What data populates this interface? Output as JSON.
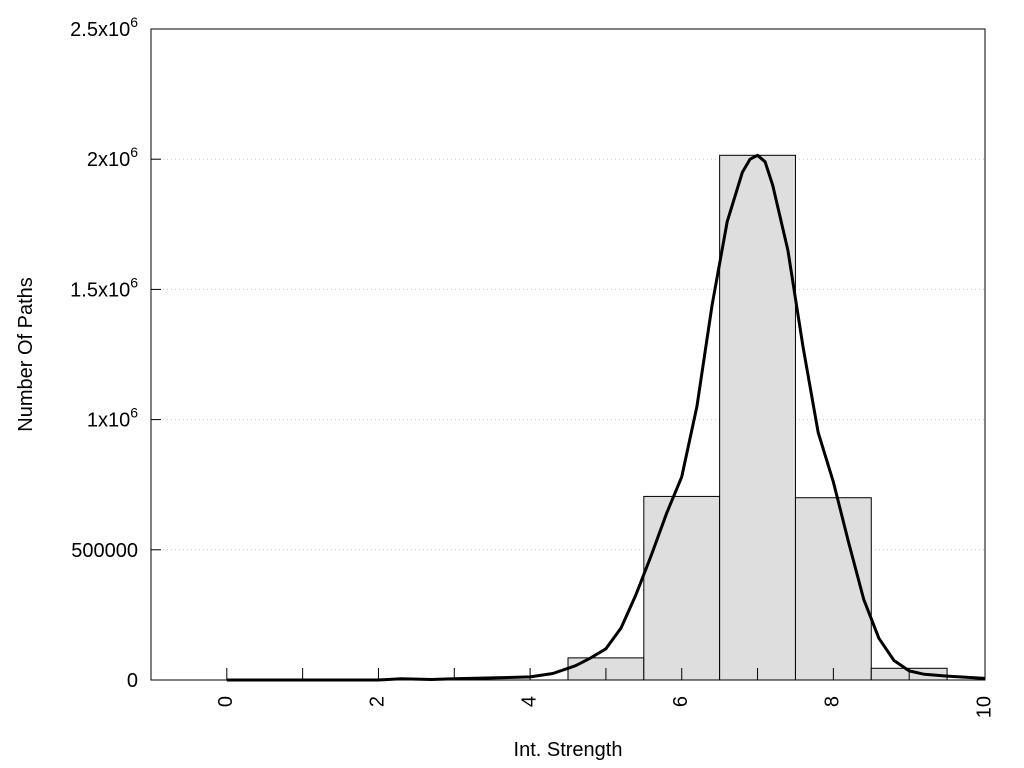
{
  "chart_data": {
    "type": "bar",
    "title": "",
    "xlabel": "Int. Strength",
    "ylabel": "Number Of Paths",
    "xlim": [
      -1,
      10
    ],
    "ylim": [
      0,
      2500000
    ],
    "grid": "y-dotted",
    "x_ticks": [
      {
        "value": 0,
        "label": "0"
      },
      {
        "value": 2,
        "label": "2"
      },
      {
        "value": 4,
        "label": "4"
      },
      {
        "value": 6,
        "label": "6"
      },
      {
        "value": 8,
        "label": "8"
      },
      {
        "value": 10,
        "label": "10"
      }
    ],
    "y_ticks": [
      {
        "value": 0,
        "label": "0"
      },
      {
        "value": 500000,
        "label": "500000"
      },
      {
        "value": 1000000,
        "label": "1x10",
        "exp": "6"
      },
      {
        "value": 1500000,
        "label": "1.5x10",
        "exp": "6"
      },
      {
        "value": 2000000,
        "label": "2x10",
        "exp": "6"
      },
      {
        "value": 2500000,
        "label": "2.5x10",
        "exp": "6"
      }
    ],
    "bars": {
      "width": 1,
      "x": [
        0,
        1,
        2,
        3,
        4,
        5,
        6,
        7,
        8,
        9
      ],
      "values": [
        0,
        0,
        0,
        0,
        0,
        85000,
        705000,
        2015000,
        700000,
        45000
      ]
    },
    "curve": {
      "x": [
        0,
        1,
        2,
        2.3,
        2.7,
        3,
        3.5,
        4,
        4.3,
        4.6,
        4.8,
        5,
        5.2,
        5.4,
        5.6,
        5.8,
        6,
        6.2,
        6.4,
        6.6,
        6.8,
        6.9,
        7,
        7.1,
        7.2,
        7.4,
        7.6,
        7.8,
        8,
        8.2,
        8.4,
        8.6,
        8.8,
        9,
        9.2,
        9.5,
        10
      ],
      "y": [
        0,
        0,
        0,
        5000,
        2000,
        5000,
        8000,
        12000,
        25000,
        55000,
        85000,
        120000,
        200000,
        330000,
        480000,
        640000,
        780000,
        1050000,
        1440000,
        1760000,
        1950000,
        2000000,
        2015000,
        1990000,
        1900000,
        1650000,
        1280000,
        950000,
        760000,
        530000,
        310000,
        160000,
        75000,
        35000,
        22000,
        15000,
        6000
      ]
    }
  }
}
